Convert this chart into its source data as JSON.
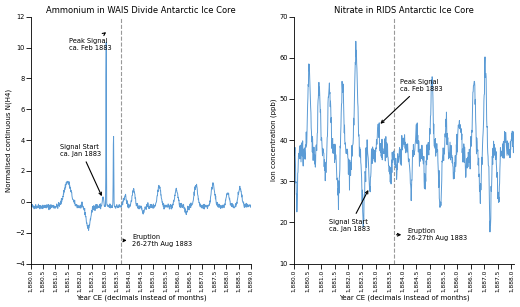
{
  "left_title": "Ammonium in WAIS Divide Antarctic Ice Core",
  "right_title": "Nitrate in RIDS Antarctic Ice Core",
  "left_ylabel": "Normalised continuous N(H4)",
  "right_ylabel": "Ion concentration (ppb)",
  "xlabel": "Year CE (decimals instead of months)",
  "eruption_line": 1883.667,
  "left_annotation_eruption": "Eruption\n26-27th Aug 1883",
  "left_annotation_peak": "Peak Signal\nca. Feb 1883",
  "left_annotation_start": "Signal Start\nca. Jan 1883",
  "right_annotation_eruption": "Eruption\n26-27th Aug 1883",
  "right_annotation_peak": "Peak Signal\nca. Feb 1883",
  "right_annotation_start": "Signal Start\nca. Jan 1883",
  "line_color": "#5B9BD5",
  "annotation_color": "#000000",
  "dashed_line_color": "#999999",
  "left_xlim": [
    1880.0,
    1889.0
  ],
  "right_xlim": [
    1880.0,
    1888.1
  ],
  "left_ylim": [
    -4,
    12
  ],
  "right_ylim": [
    10,
    70
  ],
  "left_yticks": [
    -4,
    -2,
    0,
    2,
    4,
    6,
    8,
    10,
    12
  ],
  "right_yticks": [
    10,
    20,
    30,
    40,
    50,
    60,
    70
  ]
}
